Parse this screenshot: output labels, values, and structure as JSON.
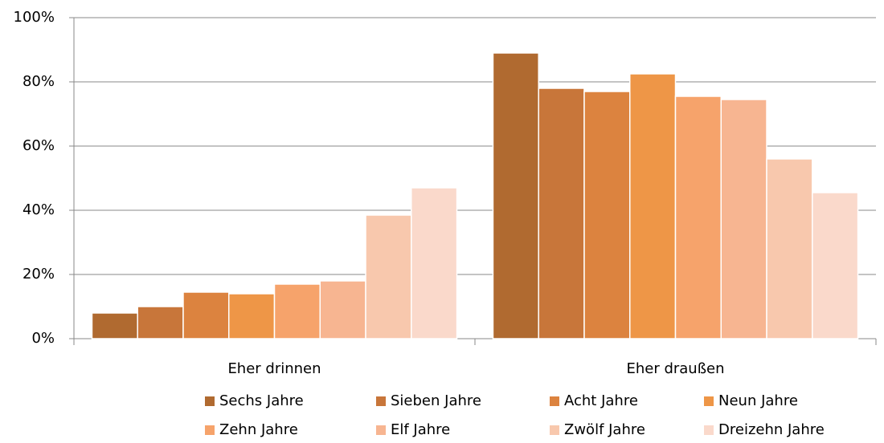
{
  "chart_data": {
    "type": "bar",
    "categories": [
      "Eher drinnen",
      "Eher draußen"
    ],
    "series": [
      {
        "name": "Sechs Jahre",
        "color": "#b06a30",
        "values": [
          8,
          89
        ]
      },
      {
        "name": "Sieben Jahre",
        "color": "#c8763a",
        "values": [
          10,
          78
        ]
      },
      {
        "name": "Acht Jahre",
        "color": "#dc833f",
        "values": [
          14.5,
          77
        ]
      },
      {
        "name": "Neun Jahre",
        "color": "#ee9647",
        "values": [
          14,
          82.5
        ]
      },
      {
        "name": "Zehn Jahre",
        "color": "#f6a36b",
        "values": [
          17,
          75.5
        ]
      },
      {
        "name": "Elf Jahre",
        "color": "#f7b591",
        "values": [
          18,
          74.5
        ]
      },
      {
        "name": "Zwölf Jahre",
        "color": "#f8c8ad",
        "values": [
          38.5,
          56
        ]
      },
      {
        "name": "Dreizehn Jahre",
        "color": "#fad9cb",
        "values": [
          47,
          45.5
        ]
      }
    ],
    "ylim": [
      0,
      100
    ],
    "yticks": [
      {
        "value": 0,
        "label": "0%"
      },
      {
        "value": 20,
        "label": "20%"
      },
      {
        "value": 40,
        "label": "40%"
      },
      {
        "value": 60,
        "label": "60%"
      },
      {
        "value": 80,
        "label": "80%"
      },
      {
        "value": 100,
        "label": "100%"
      }
    ],
    "grid": true,
    "legend": "bottom"
  }
}
